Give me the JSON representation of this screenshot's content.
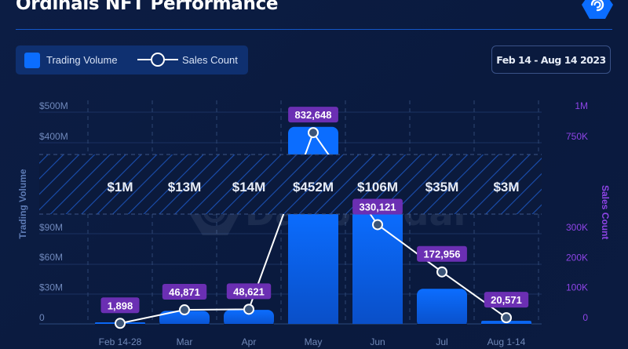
{
  "header": {
    "title": "Ordinals NFT Performance",
    "date_range": "Feb 14 - Aug 14 2023"
  },
  "legend": {
    "bar_label": "Trading Volume",
    "line_label": "Sales Count"
  },
  "watermark": "DappRadar",
  "colors": {
    "bar": "#0b6dff",
    "line": "#ffffff",
    "label_bg": "#6b2fb3",
    "left_axis": "#7c93c4",
    "right_axis": "#8e44e6",
    "hatch": "#1a4fb0"
  },
  "chart_data": {
    "type": "bar",
    "title": "Ordinals NFT Performance",
    "categories": [
      "Feb 14-28",
      "Mar",
      "Apr",
      "May",
      "Jun",
      "Jul",
      "Aug 1-14"
    ],
    "series": [
      {
        "name": "Trading Volume",
        "type": "bar",
        "axis": "left",
        "values": [
          1,
          13,
          14,
          452,
          106,
          35,
          3
        ],
        "value_labels": [
          "$1M",
          "$13M",
          "$14M",
          "$452M",
          "$106M",
          "$35M",
          "$3M"
        ],
        "unit": "M USD"
      },
      {
        "name": "Sales Count",
        "type": "line",
        "axis": "right",
        "values": [
          1898,
          46871,
          48621,
          832648,
          330121,
          172956,
          20571
        ],
        "value_labels": [
          "1,898",
          "46,871",
          "48,621",
          "832,648",
          "330,121",
          "172,956",
          "20,571"
        ]
      }
    ],
    "ylabel": "Trading Volume",
    "y2label": "Sales Count",
    "yticks_lower": [
      "0",
      "$30M",
      "$60M",
      "$90M"
    ],
    "yticks_lower_values": [
      0,
      30,
      60,
      90
    ],
    "yticks_upper": [
      "$400M",
      "$500M"
    ],
    "yticks_upper_values": [
      400,
      500
    ],
    "y2ticks_lower": [
      "0",
      "100K",
      "200K",
      "300K"
    ],
    "y2ticks_lower_values": [
      0,
      100000,
      200000,
      300000
    ],
    "y2ticks_upper": [
      "750K",
      "1M"
    ],
    "y2ticks_upper_values": [
      750000,
      1000000
    ],
    "ylim_lower": [
      0,
      100
    ],
    "ylim_upper": [
      360,
      500
    ],
    "y2lim_lower": [
      0,
      333000
    ],
    "y2lim_upper": [
      710000,
      1000000
    ],
    "axis_break": true,
    "grid": true,
    "legend": "top-left"
  }
}
